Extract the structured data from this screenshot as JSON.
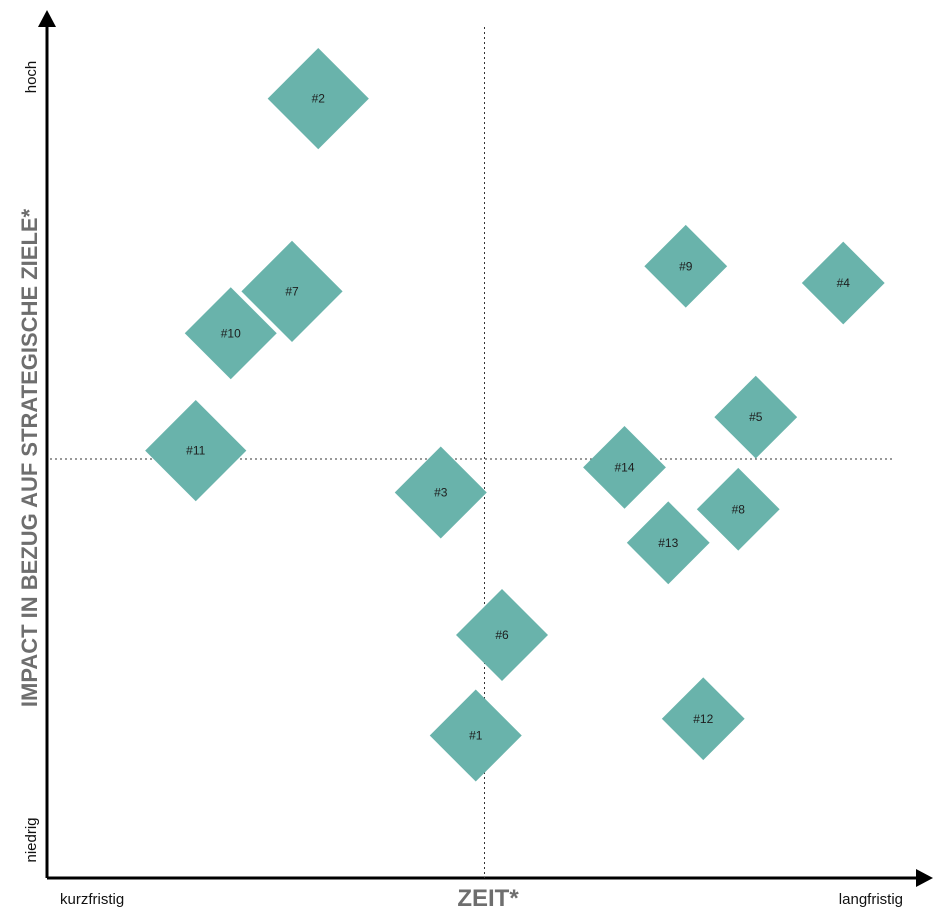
{
  "chart_data": {
    "type": "scatter",
    "marker": "diamond",
    "colors": {
      "marker": "#69b3ab",
      "axis": "#000000",
      "title": "#6e6e6e"
    },
    "xlabel": "ZEIT*",
    "ylabel": "IMPACT IN BEZUG AUF STRATEGISCHE ZIELE*",
    "x_low_label": "kurzfristig",
    "x_high_label": "langfristig",
    "y_low_label": "niedrig",
    "y_high_label": "hoch",
    "xlim": [
      0,
      10
    ],
    "ylim": [
      0,
      10
    ],
    "dividers": {
      "x": 5.0,
      "y": 5.0
    },
    "grid": false,
    "points": [
      {
        "label": "#1",
        "x": 4.9,
        "y": 1.7,
        "size": 1.0
      },
      {
        "label": "#2",
        "x": 3.1,
        "y": 9.3,
        "size": 1.1
      },
      {
        "label": "#3",
        "x": 4.5,
        "y": 4.6,
        "size": 1.0
      },
      {
        "label": "#4",
        "x": 9.1,
        "y": 7.1,
        "size": 0.9
      },
      {
        "label": "#5",
        "x": 8.1,
        "y": 5.5,
        "size": 0.9
      },
      {
        "label": "#6",
        "x": 5.2,
        "y": 2.9,
        "size": 1.0
      },
      {
        "label": "#7",
        "x": 2.8,
        "y": 7.0,
        "size": 1.1
      },
      {
        "label": "#8",
        "x": 7.9,
        "y": 4.4,
        "size": 0.9
      },
      {
        "label": "#9",
        "x": 7.3,
        "y": 7.3,
        "size": 0.9
      },
      {
        "label": "#10",
        "x": 2.1,
        "y": 6.5,
        "size": 1.0
      },
      {
        "label": "#11",
        "x": 1.7,
        "y": 5.1,
        "size": 1.1
      },
      {
        "label": "#12",
        "x": 7.5,
        "y": 1.9,
        "size": 0.9
      },
      {
        "label": "#13",
        "x": 7.1,
        "y": 4.0,
        "size": 0.9
      },
      {
        "label": "#14",
        "x": 6.6,
        "y": 4.9,
        "size": 0.9
      }
    ]
  }
}
